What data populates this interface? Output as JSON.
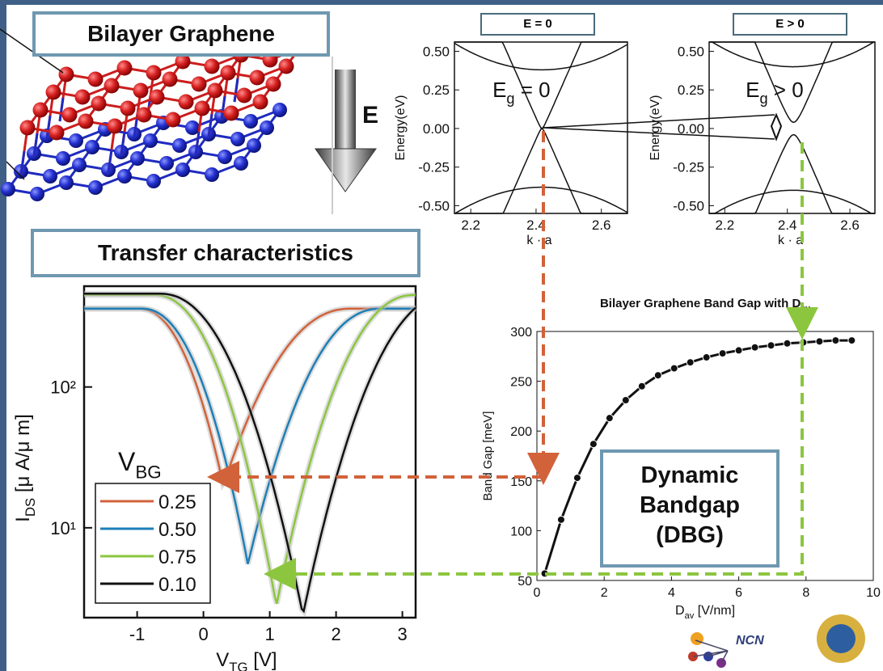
{
  "callouts": {
    "bilayer": "Bilayer Graphene",
    "transfer": "Transfer characteristics",
    "dbg_line1": "Dynamic",
    "dbg_line2": "Bandgap",
    "dbg_line3": "(DBG)"
  },
  "field_label": "E",
  "logos": {
    "ncn": "NCN"
  },
  "colors": {
    "red_layer": "#cc1d1d",
    "blue_layer": "#1f2bbf",
    "orange_series": "#d2623a",
    "blue_series": "#1d7fb8",
    "green_series": "#8cc63f",
    "black_series": "#111111",
    "frame": "#3f5f86",
    "callout_border": "#6f98b0"
  },
  "chart_data": [
    {
      "type": "line",
      "panel_title": "E = 0",
      "ylabel": "Energy(eV)",
      "xlabel": "k · a",
      "xlim": [
        2.15,
        2.68
      ],
      "ylim": [
        -0.55,
        0.56
      ],
      "xticks": [
        "2.2",
        "2.4",
        "2.6"
      ],
      "yticks": [
        "0.50",
        "0.25",
        "0.00",
        "-0.25",
        "-0.50"
      ],
      "annotation": "E",
      "annotation_sub": "g",
      "annotation_rest": " = 0",
      "bands": [
        {
          "k0": 2.418,
          "e0": 0.38,
          "curv": 2.4,
          "sign": 1
        },
        {
          "k0": 2.418,
          "e0": 0.0,
          "curv": 2.4,
          "sign": 1
        },
        {
          "k0": 2.418,
          "e0": 0.0,
          "curv": 2.4,
          "sign": -1
        },
        {
          "k0": 2.418,
          "e0": -0.38,
          "curv": 2.4,
          "sign": -1
        }
      ]
    },
    {
      "type": "line",
      "panel_title": "E > 0",
      "ylabel": "Energy(eV)",
      "xlabel": "k · a",
      "xlim": [
        2.15,
        2.68
      ],
      "ylim": [
        -0.55,
        0.56
      ],
      "xticks": [
        "2.2",
        "2.4",
        "2.6"
      ],
      "yticks": [
        "0.50",
        "0.25",
        "0.00",
        "-0.25",
        "-0.50"
      ],
      "annotation": "E",
      "annotation_sub": "g",
      "annotation_rest": " > 0",
      "bands": [
        {
          "k0": 2.418,
          "e0": 0.4,
          "curv": 2.4,
          "sign": 1
        },
        {
          "k0": 2.42,
          "e0": 0.04,
          "curv": 1.1,
          "sign": 1,
          "mexican": true
        },
        {
          "k0": 2.42,
          "e0": -0.04,
          "curv": 1.1,
          "sign": -1,
          "mexican": true
        },
        {
          "k0": 2.418,
          "e0": -0.4,
          "curv": 2.4,
          "sign": -1
        }
      ]
    },
    {
      "type": "line",
      "ylabel": "I_DS [μ A/μ m]",
      "xlabel": "V_TG [V]",
      "xlim": [
        -1.8,
        3.2
      ],
      "ylog": true,
      "ylim": [
        2.3,
        520
      ],
      "xticks": [
        "-1",
        "0",
        "1",
        "2",
        "3"
      ],
      "yticks": [
        "10²",
        "10¹"
      ],
      "legend_title": "V_BG",
      "legend_position": "bottom-left",
      "series": [
        {
          "name": "0.25",
          "color": "#d2623a",
          "vmin": 0.3,
          "imin": 20,
          "left": 0.8,
          "right": 1.2,
          "imax": 360
        },
        {
          "name": "0.50",
          "color": "#1d7fb8",
          "vmin": 0.67,
          "imin": 5.5,
          "left": 1.0,
          "right": 1.25,
          "imax": 360
        },
        {
          "name": "0.75",
          "color": "#8cc63f",
          "vmin": 1.1,
          "imin": 2.8,
          "left": 1.15,
          "right": 1.3,
          "imax": 450
        },
        {
          "name": "0.10",
          "color": "#111111",
          "vmin": 1.5,
          "imin": 2.4,
          "left": 1.35,
          "right": 1.4,
          "imax": 460
        }
      ]
    },
    {
      "type": "line",
      "title": "Bilayer Graphene Band Gap with D",
      "title_sub": "av",
      "xlabel": "D",
      "xlabel_sub": "av",
      "xlabel_rest": " [V/nm]",
      "ylabel": "Band Gap [meV]",
      "xlim": [
        0,
        10
      ],
      "ylim": [
        50,
        300
      ],
      "xticks": [
        "0",
        "2",
        "4",
        "6",
        "8",
        "10"
      ],
      "yticks": [
        "50",
        "100",
        "150",
        "200",
        "250",
        "300"
      ],
      "x": [
        0.23,
        0.72,
        1.2,
        1.68,
        2.16,
        2.64,
        3.12,
        3.6,
        4.08,
        4.56,
        5.04,
        5.52,
        6.0,
        6.48,
        6.96,
        7.44,
        7.92,
        8.4,
        8.88,
        9.36
      ],
      "y": [
        57,
        111,
        153,
        187,
        213,
        231,
        245,
        256,
        263,
        269,
        274,
        278,
        281,
        284,
        286,
        288,
        289,
        290,
        291,
        291
      ]
    }
  ]
}
